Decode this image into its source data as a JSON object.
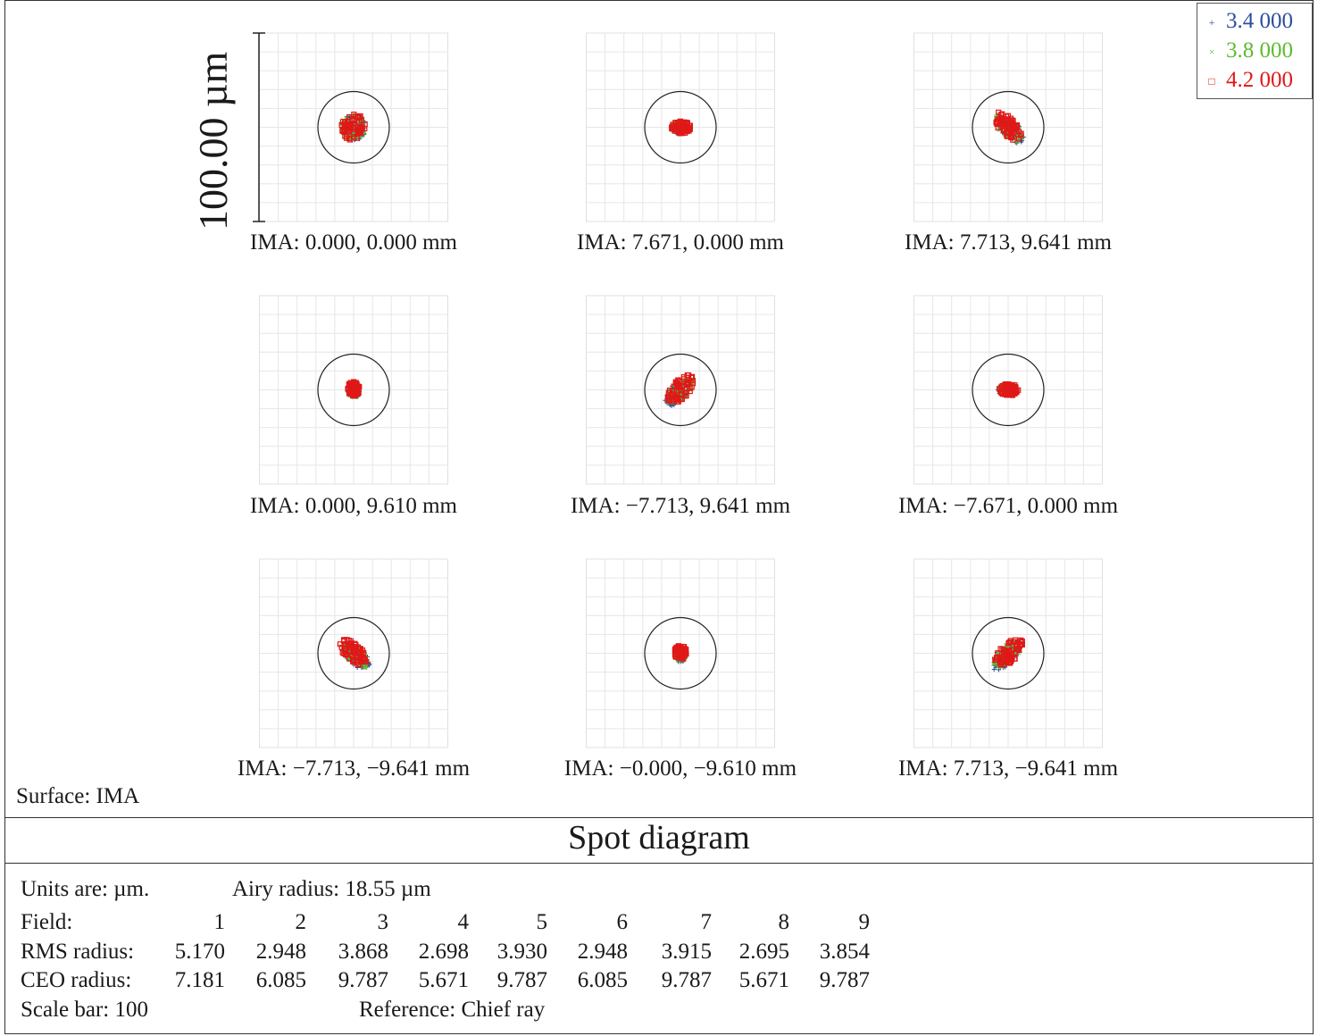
{
  "legend": [
    {
      "label": "3.4 000",
      "color": "#2b4f9a",
      "marker": "+"
    },
    {
      "label": "3.8 000",
      "color": "#5dbb2f",
      "marker": "×"
    },
    {
      "label": "4.2 000",
      "color": "#e01818",
      "marker": "□"
    }
  ],
  "scale_bar_label": "100.00 µm",
  "cells": [
    {
      "label": "IMA: 0.000, 0.000 mm",
      "shape": "round"
    },
    {
      "label": "IMA: 7.671, 0.000 mm",
      "shape": "flat"
    },
    {
      "label": "IMA: 7.713, 9.641 mm",
      "shape": "tilt-left"
    },
    {
      "label": "IMA: 0.000, 9.610 mm",
      "shape": "small"
    },
    {
      "label": "IMA: −7.713, 9.641 mm",
      "shape": "tilt-right"
    },
    {
      "label": "IMA: −7.671, 0.000 mm",
      "shape": "flat"
    },
    {
      "label": "IMA: −7.713, −9.641 mm",
      "shape": "tilt-left"
    },
    {
      "label": "IMA: −0.000,  −9.610 mm",
      "shape": "small"
    },
    {
      "label": "IMA: 7.713, −9.641 mm",
      "shape": "tilt-right"
    }
  ],
  "surface_label": "Surface: IMA",
  "title": "Spot diagram",
  "info": {
    "units": "Units are: µm.",
    "airy": "Airy radius: 18.55 µm",
    "field_label": "Field:",
    "rms_label": "RMS radius:",
    "ceo_label": "CEO radius:",
    "scale_bar": "Scale bar: 100",
    "reference": "Reference: Chief ray",
    "fields": [
      "1",
      "2",
      "3",
      "4",
      "5",
      "6",
      "7",
      "8",
      "9"
    ],
    "rms": [
      "5.170",
      "2.948",
      "3.868",
      "2.698",
      "3.930",
      "2.948",
      "3.915",
      "2.695",
      "3.854"
    ],
    "ceo": [
      "7.181",
      "6.085",
      "9.787",
      "5.671",
      "9.787",
      "6.085",
      "9.787",
      "5.671",
      "9.787"
    ]
  }
}
